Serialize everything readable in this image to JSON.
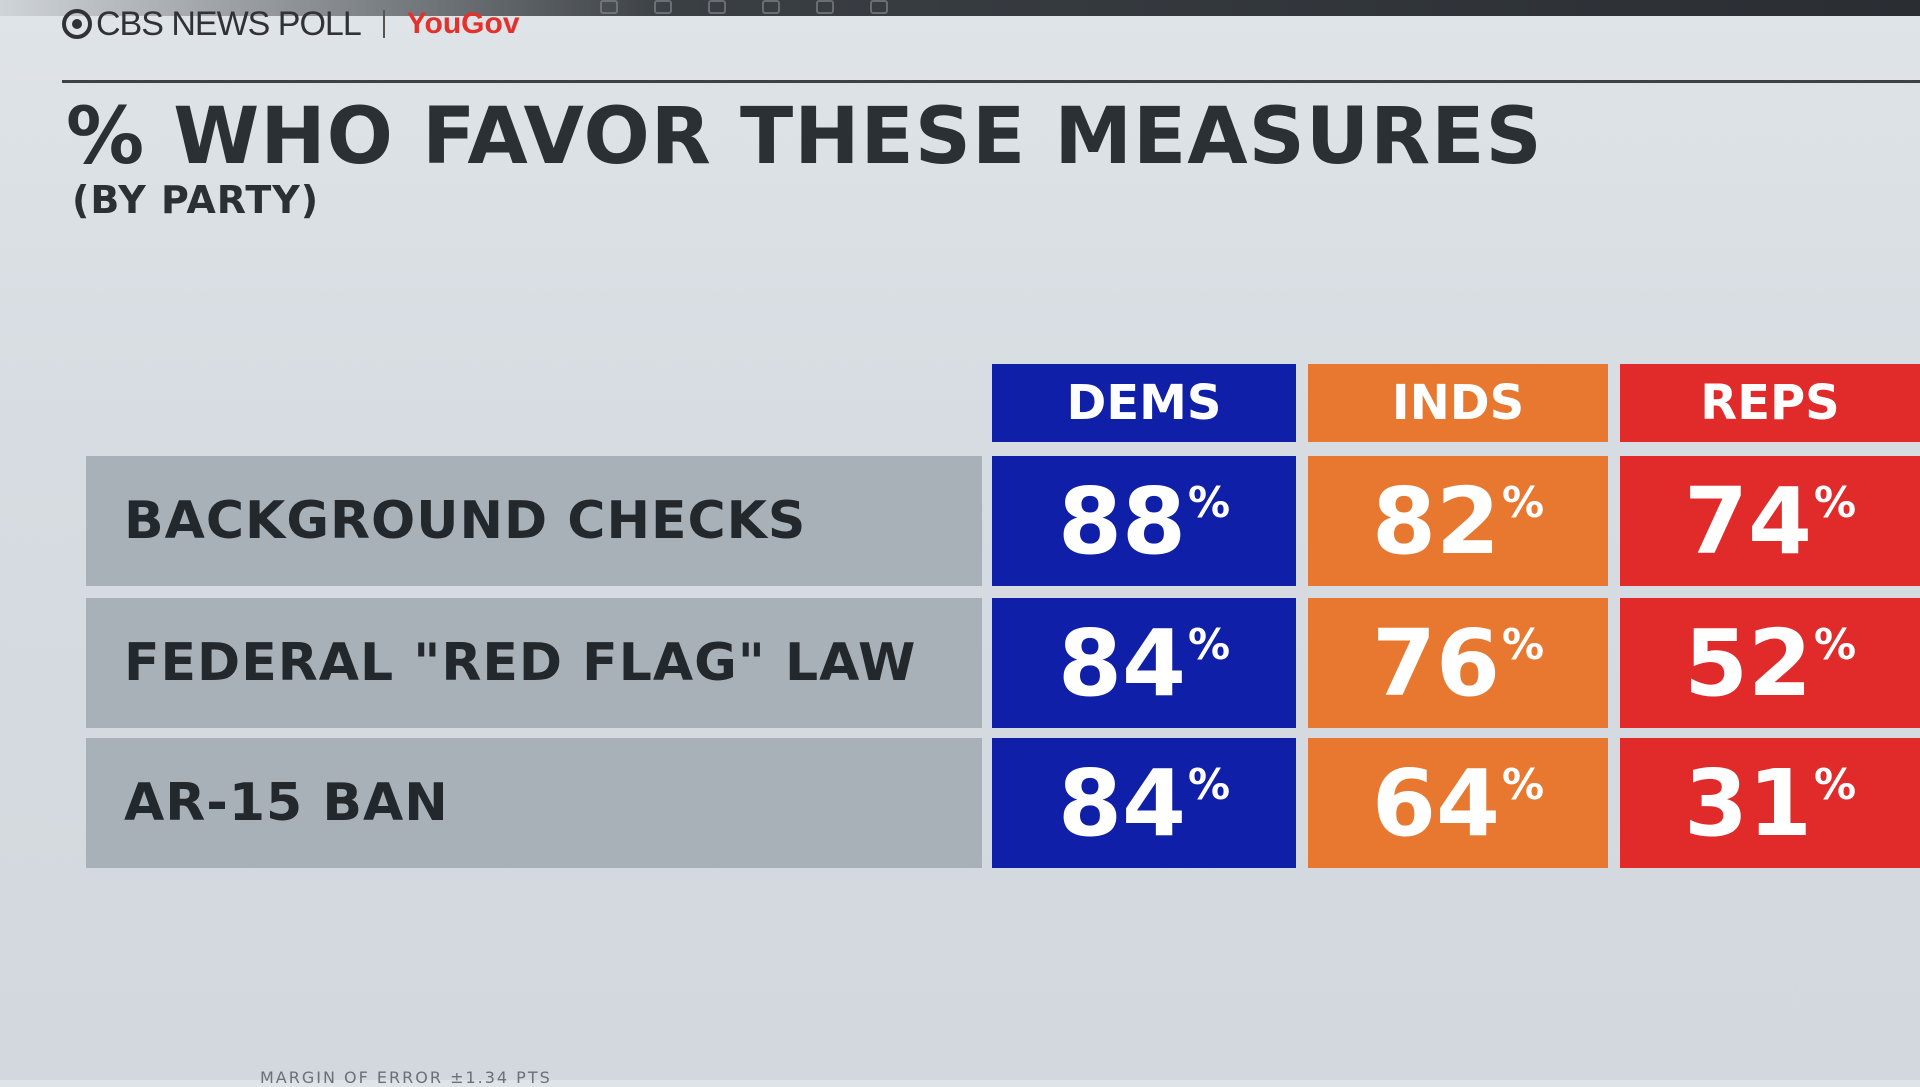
{
  "brand": {
    "network": "CBS NEWS POLL",
    "partner": "YouGov"
  },
  "colors": {
    "dems": "#0f1fa8",
    "inds": "#e8782f",
    "reps": "#e12a2a",
    "label_bg": "#a8b1b8"
  },
  "chart_data": {
    "type": "table",
    "title": "% WHO FAVOR THESE MEASURES",
    "subtitle": "(BY PARTY)",
    "columns": [
      "DEMS",
      "INDS",
      "REPS"
    ],
    "unit": "%",
    "rows": [
      {
        "label": "BACKGROUND CHECKS",
        "values": [
          88,
          82,
          74
        ]
      },
      {
        "label": "FEDERAL \"RED FLAG\" LAW",
        "values": [
          84,
          76,
          52
        ]
      },
      {
        "label": "AR-15 BAN",
        "values": [
          84,
          64,
          31
        ]
      }
    ]
  },
  "footer": {
    "note": "MARGIN OF ERROR ±1.34 PTS"
  }
}
